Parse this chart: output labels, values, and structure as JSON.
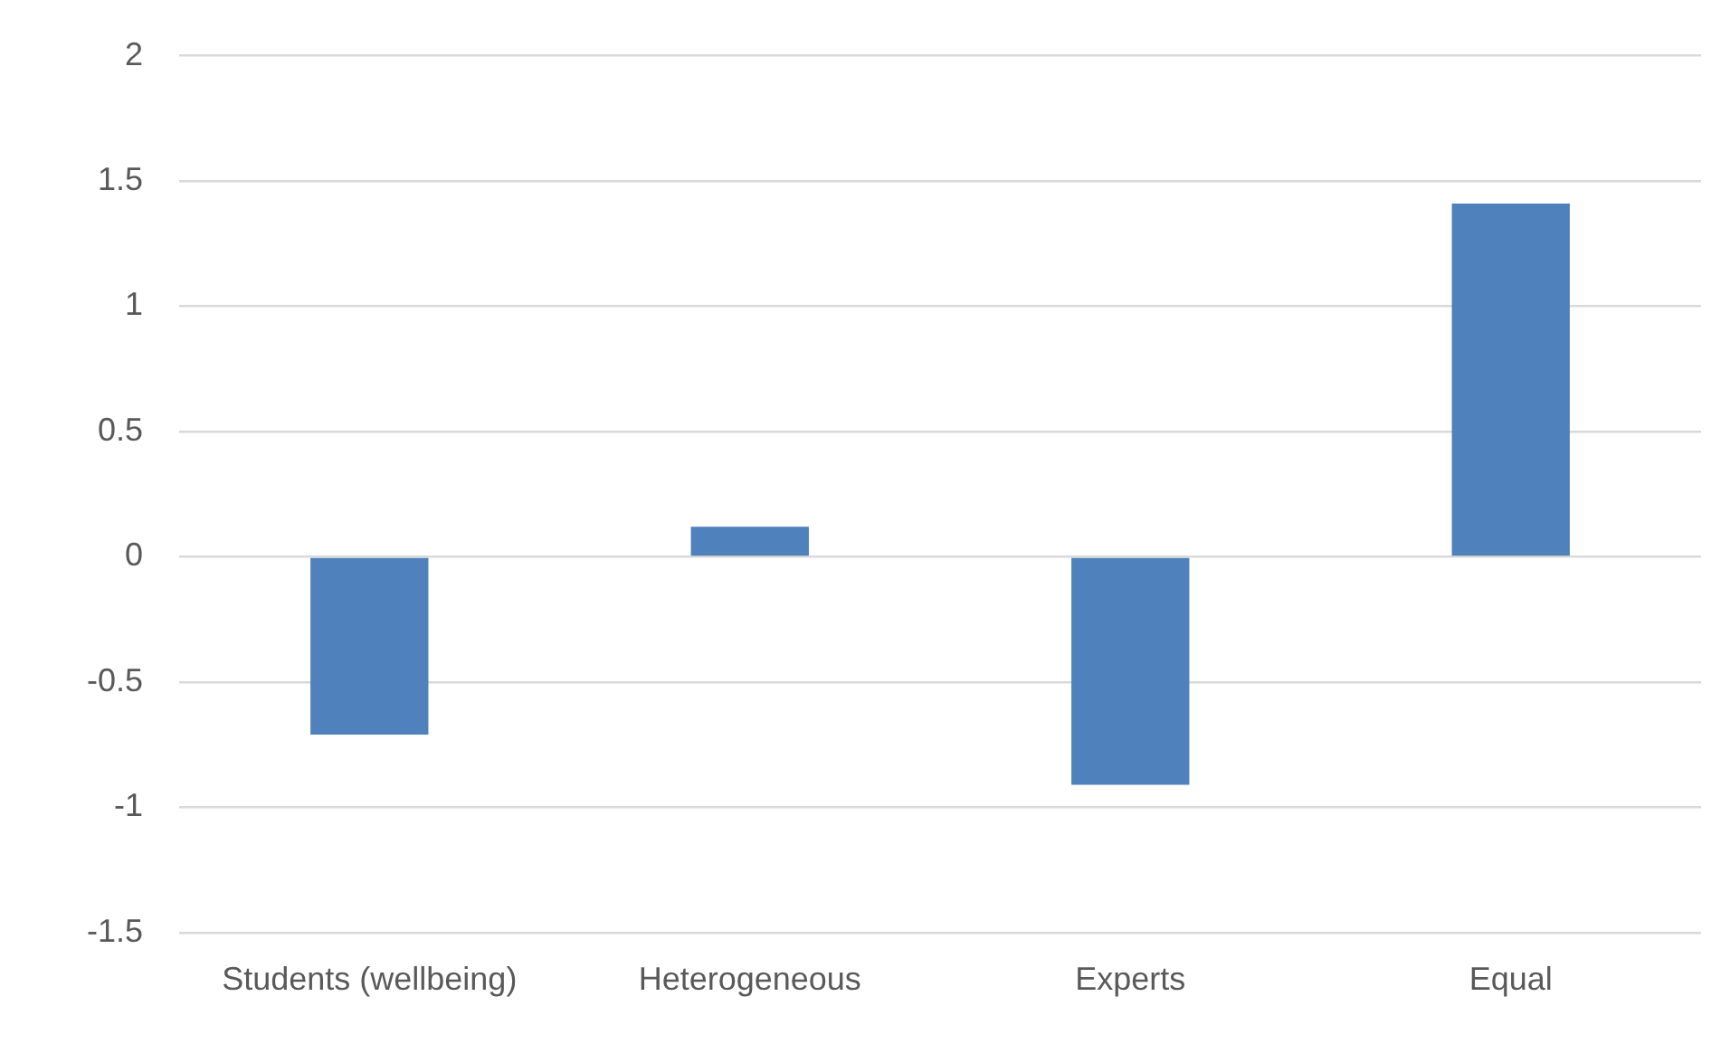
{
  "chart_data": {
    "type": "bar",
    "categories": [
      "Students (wellbeing)",
      "Heterogeneous",
      "Experts",
      "Equal"
    ],
    "values": [
      -0.71,
      0.12,
      -0.91,
      1.41
    ],
    "color": "#4f81bd",
    "ylim": [
      -1.5,
      2
    ],
    "yticks": [
      -1.5,
      -1,
      -0.5,
      0,
      0.5,
      1,
      1.5,
      2
    ],
    "grid": "y",
    "legend": false
  }
}
